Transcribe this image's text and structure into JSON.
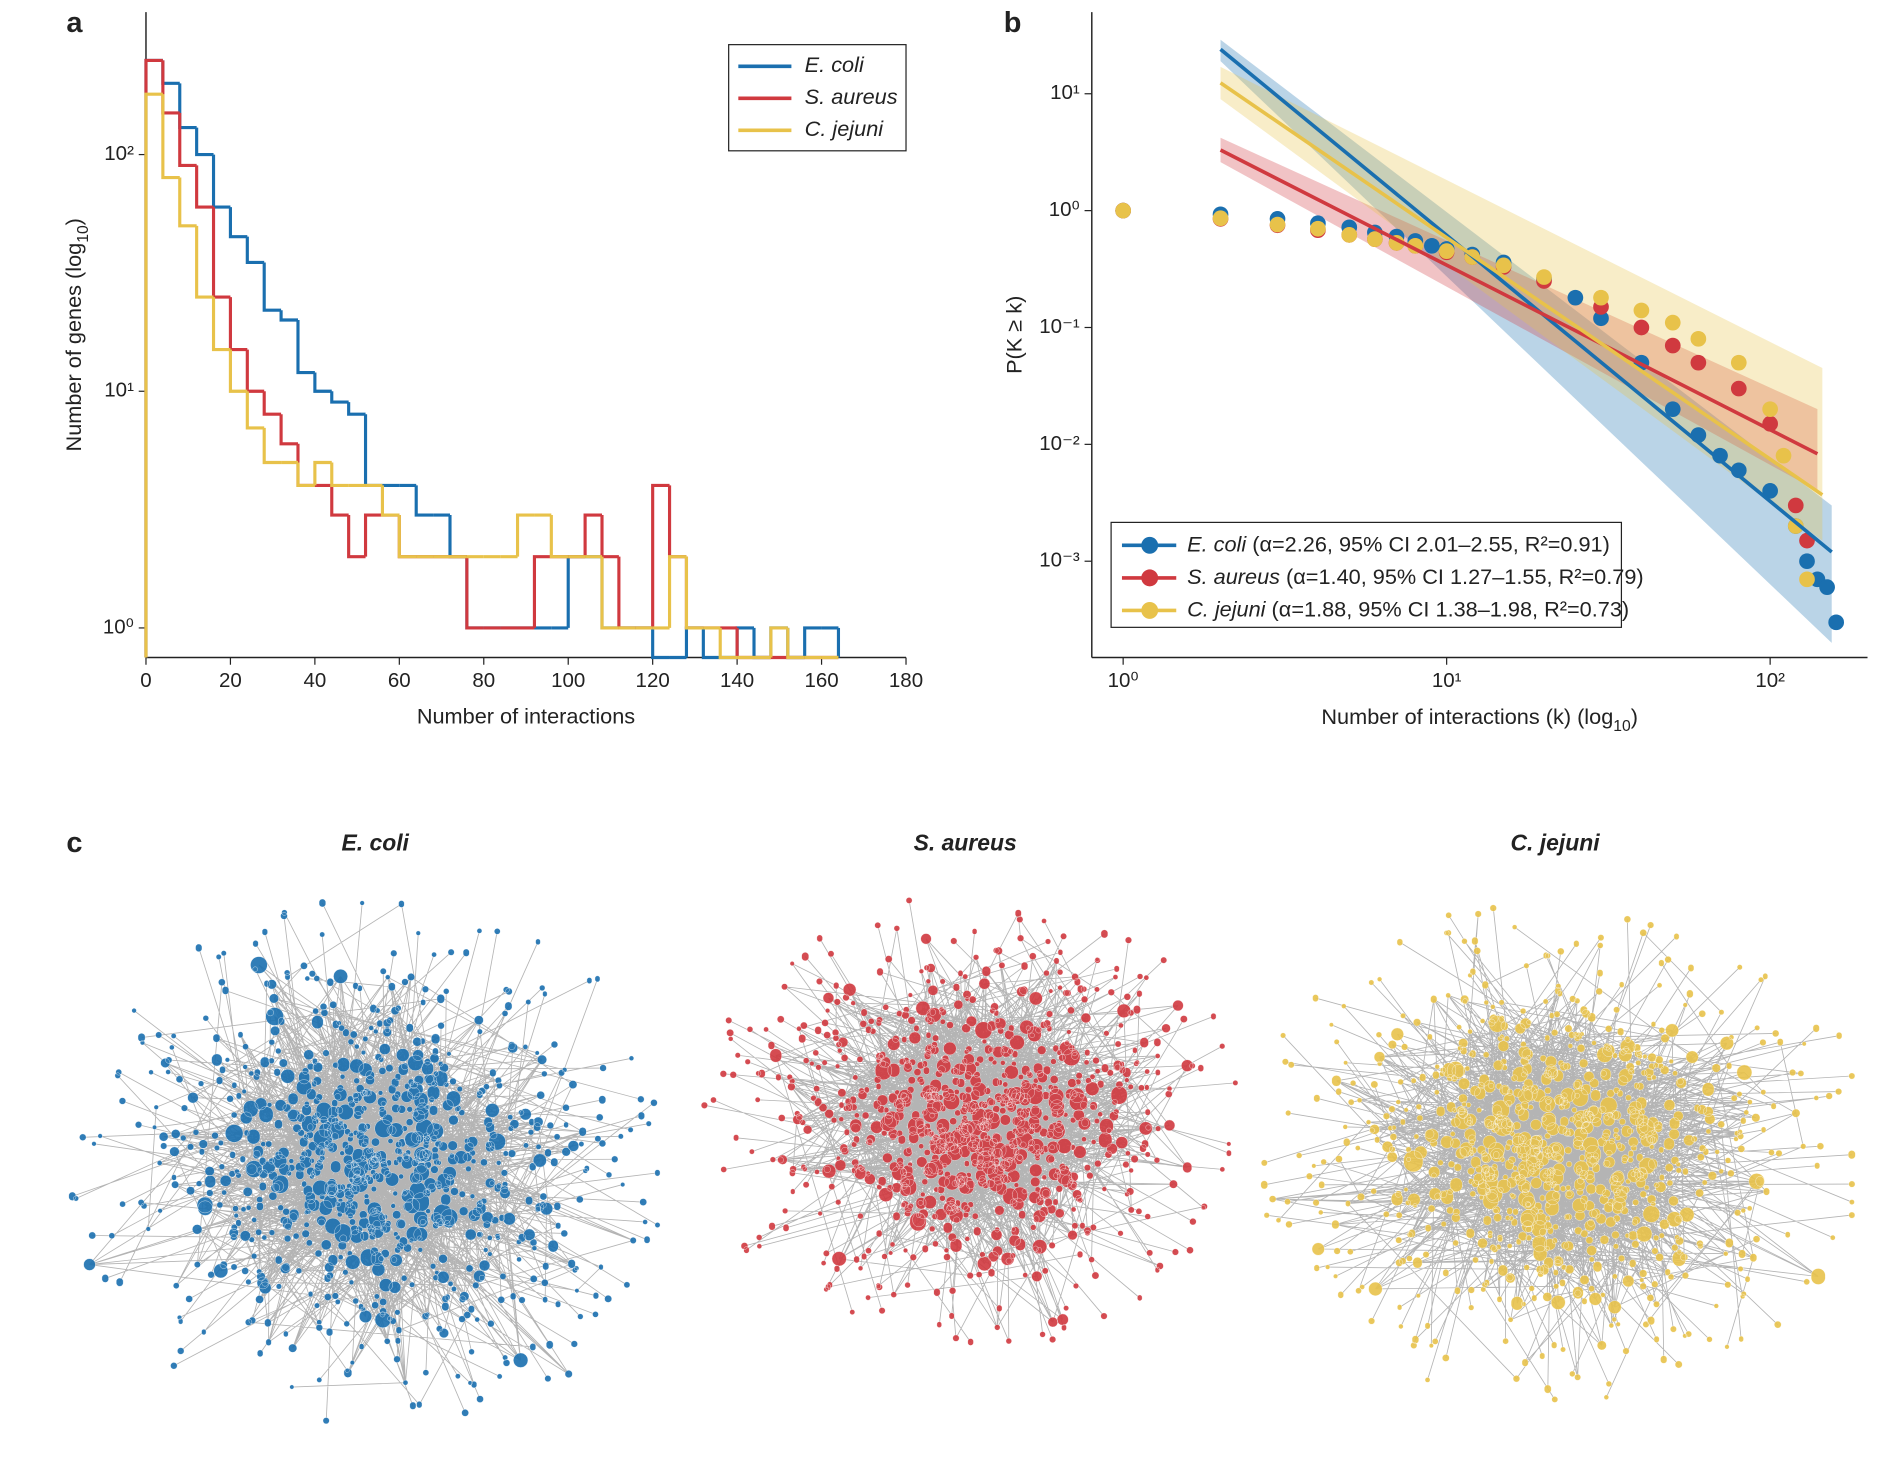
{
  "chart_data": [
    {
      "type": "histogram",
      "panel": "a",
      "xlabel": "Number of interactions",
      "ylabel": {
        "text": "Number of genes (log",
        "sub": "10",
        "tail": ")"
      },
      "bins": [
        0,
        4,
        8,
        12,
        16,
        20,
        24,
        28,
        32,
        36,
        40,
        44,
        48,
        52,
        56,
        60,
        64,
        68,
        72,
        76,
        80,
        84,
        88,
        92,
        96,
        100,
        104,
        108,
        112,
        116,
        120,
        124,
        128,
        132,
        136,
        140,
        144,
        148,
        152,
        156,
        160,
        164
      ],
      "series": [
        {
          "name": "E. coli",
          "color": "#1a6faf",
          "values": [
            250,
            200,
            130,
            100,
            60,
            45,
            35,
            22,
            20,
            12,
            10,
            9,
            8,
            4,
            4,
            4,
            3,
            3,
            2,
            1,
            1,
            1,
            1,
            1,
            1,
            2,
            2,
            1,
            1,
            1,
            0,
            0,
            1,
            0,
            0,
            1,
            0,
            1,
            0,
            1,
            1
          ]
        },
        {
          "name": "S. aureus",
          "color": "#d0393f",
          "values": [
            250,
            150,
            90,
            60,
            25,
            15,
            10,
            8,
            6,
            4,
            4,
            3,
            2,
            3,
            3,
            2,
            2,
            2,
            2,
            1,
            1,
            1,
            1,
            2,
            2,
            2,
            3,
            2,
            1,
            1,
            4,
            2,
            1,
            1,
            1,
            0,
            0,
            0,
            0,
            0,
            0
          ]
        },
        {
          "name": "C. jejuni",
          "color": "#e8c24a",
          "values": [
            180,
            80,
            50,
            25,
            15,
            10,
            7,
            5,
            5,
            4,
            5,
            4,
            4,
            4,
            3,
            2,
            2,
            2,
            2,
            2,
            2,
            2,
            3,
            3,
            2,
            2,
            2,
            1,
            1,
            1,
            1,
            2,
            1,
            1,
            0,
            0,
            0,
            1,
            0,
            0,
            0
          ]
        }
      ],
      "xlim": [
        0,
        180
      ],
      "xticks": [
        0,
        20,
        40,
        60,
        80,
        100,
        120,
        140,
        160,
        180
      ],
      "yscale": "log",
      "ylim": [
        0.75,
        400
      ],
      "yticks": [
        {
          "value": 1,
          "label": "10⁰"
        },
        {
          "value": 10,
          "label": "10¹"
        },
        {
          "value": 100,
          "label": "10²"
        }
      ],
      "legend": "upper right"
    },
    {
      "type": "scatter",
      "panel": "b",
      "xlabel": {
        "text": "Number of interactions (k) (log",
        "sub": "10",
        "tail": ")"
      },
      "ylabel": "P(K ≥ k)",
      "xscale": "log",
      "yscale": "log",
      "xlim": [
        0.8,
        200
      ],
      "xticks": [
        {
          "value": 1,
          "label": "10⁰"
        },
        {
          "value": 10,
          "label": "10¹"
        },
        {
          "value": 100,
          "label": "10²"
        }
      ],
      "ylim": [
        0.00015,
        50
      ],
      "yticks": [
        {
          "value": 10,
          "label": "10¹"
        },
        {
          "value": 1,
          "label": "10⁰"
        },
        {
          "value": 0.1,
          "label": "10⁻¹"
        },
        {
          "value": 0.01,
          "label": "10⁻²"
        },
        {
          "value": 0.001,
          "label": "10⁻³"
        }
      ],
      "legend": "lower left",
      "series": [
        {
          "name": "E. coli",
          "annotation": "(α=2.26, 95% CI 2.01–2.55, R²=0.91)",
          "color": "#1a6faf",
          "x": [
            1,
            2,
            3,
            4,
            5,
            6,
            7,
            8,
            9,
            10,
            12,
            15,
            20,
            25,
            30,
            40,
            50,
            60,
            70,
            80,
            100,
            120,
            130,
            140,
            150,
            160
          ],
          "y": [
            1,
            0.93,
            0.85,
            0.78,
            0.72,
            0.65,
            0.6,
            0.55,
            0.5,
            0.47,
            0.42,
            0.36,
            0.26,
            0.18,
            0.12,
            0.05,
            0.02,
            0.012,
            0.008,
            0.006,
            0.004,
            0.002,
            0.001,
            0.0007,
            0.0006,
            0.0003
          ],
          "fit": {
            "x": [
              2,
              155
            ],
            "y": [
              24,
              0.0012
            ],
            "lower": [
              19,
              0.0002
            ],
            "upper": [
              29,
              0.003
            ]
          }
        },
        {
          "name": "S. aureus",
          "annotation": "(α=1.40, 95% CI 1.27–1.55, R²=0.79)",
          "color": "#d0393f",
          "x": [
            1,
            2,
            3,
            4,
            5,
            6,
            7,
            8,
            10,
            12,
            15,
            20,
            30,
            40,
            50,
            60,
            80,
            100,
            120,
            130
          ],
          "y": [
            1,
            0.85,
            0.75,
            0.68,
            0.62,
            0.57,
            0.53,
            0.5,
            0.44,
            0.4,
            0.33,
            0.25,
            0.15,
            0.1,
            0.07,
            0.05,
            0.03,
            0.015,
            0.003,
            0.0015
          ],
          "fit": {
            "x": [
              2,
              140
            ],
            "y": [
              3.3,
              0.0083
            ],
            "lower": [
              2.6,
              0.004
            ],
            "upper": [
              4.2,
              0.02
            ]
          }
        },
        {
          "name": "C. jejuni",
          "annotation": "(α=1.88, 95% CI 1.38–1.98, R²=0.73)",
          "color": "#e8c24a",
          "x": [
            1,
            2,
            3,
            4,
            5,
            6,
            7,
            8,
            10,
            12,
            15,
            20,
            30,
            40,
            50,
            60,
            80,
            100,
            110,
            120,
            130
          ],
          "y": [
            1,
            0.86,
            0.76,
            0.7,
            0.62,
            0.57,
            0.53,
            0.5,
            0.45,
            0.4,
            0.34,
            0.27,
            0.18,
            0.14,
            0.11,
            0.08,
            0.05,
            0.02,
            0.008,
            0.002,
            0.0007
          ],
          "fit": {
            "x": [
              2,
              145
            ],
            "y": [
              12.4,
              0.0037
            ],
            "lower": [
              9,
              0.0015
            ],
            "upper": [
              17,
              0.045
            ]
          }
        }
      ]
    }
  ],
  "panel_c": {
    "label": "c",
    "titles": [
      "E. coli",
      "S. aureus",
      "C. jejuni"
    ]
  }
}
